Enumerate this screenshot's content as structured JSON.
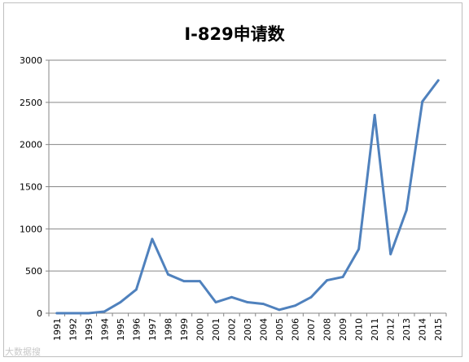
{
  "chart_data": {
    "type": "line",
    "title": "I-829申请数",
    "xlabel": "",
    "ylabel": "",
    "ylim": [
      0,
      3000
    ],
    "yticks": [
      0,
      500,
      1000,
      1500,
      2000,
      2500,
      3000
    ],
    "grid": true,
    "legend": "none",
    "line_color": "#4f81bd",
    "x": [
      "1991",
      "1992",
      "1993",
      "1994",
      "1995",
      "1996",
      "1997",
      "1998",
      "1999",
      "2000",
      "2001",
      "2002",
      "2003",
      "2004",
      "2005",
      "2006",
      "2007",
      "2008",
      "2009",
      "2010",
      "2011",
      "2012",
      "2013",
      "2014",
      "2015"
    ],
    "series": [
      {
        "values": [
          0,
          0,
          0,
          20,
          130,
          280,
          880,
          460,
          380,
          380,
          130,
          190,
          130,
          110,
          40,
          90,
          190,
          390,
          430,
          760,
          2350,
          700,
          1220,
          2510,
          2760
        ]
      }
    ]
  },
  "watermark": "大数据搜"
}
